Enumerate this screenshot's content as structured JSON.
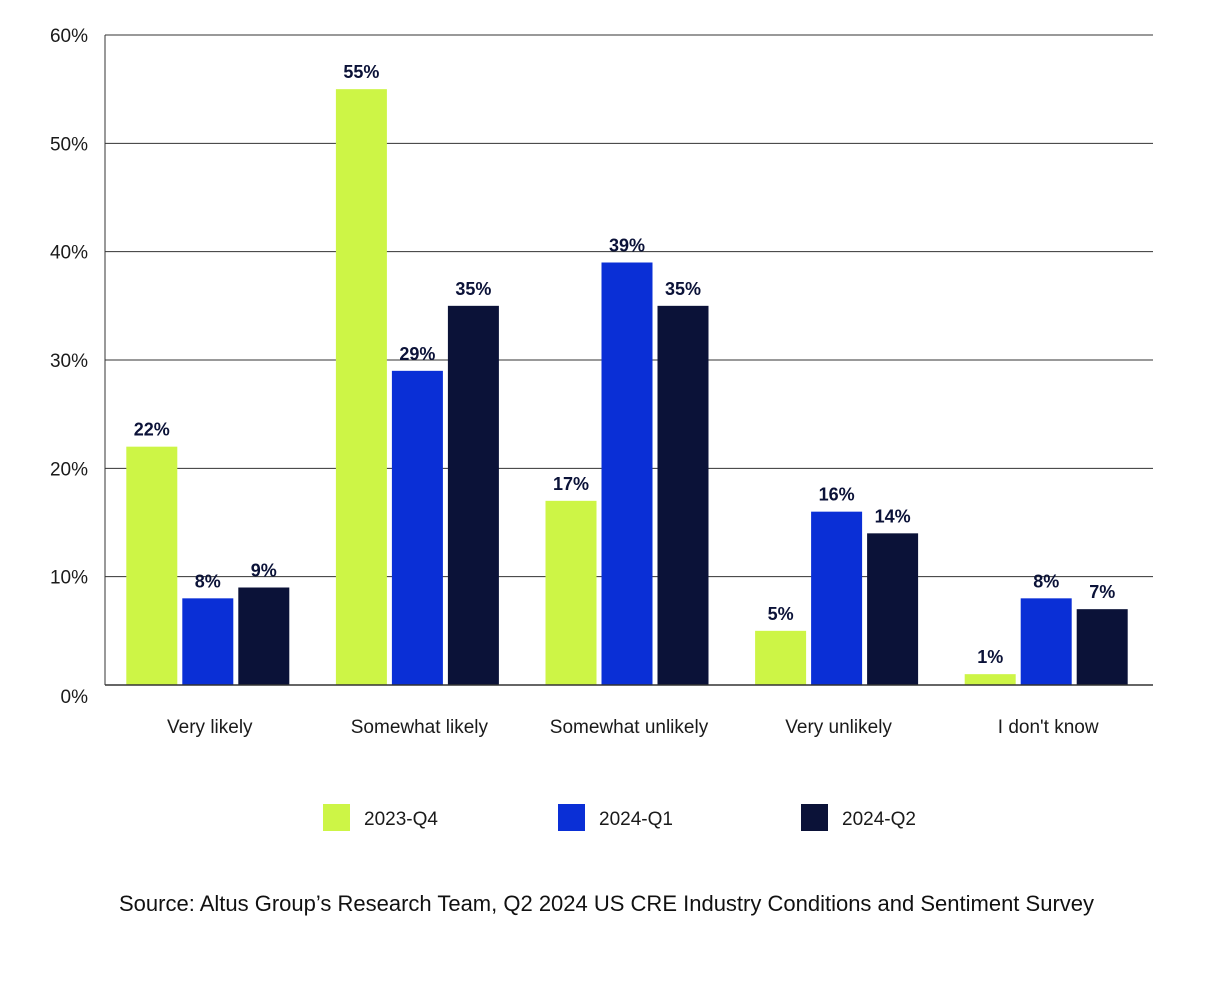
{
  "chart_data": {
    "type": "bar",
    "title": "",
    "xlabel": "",
    "ylabel": "",
    "ylim": [
      0,
      60
    ],
    "yticks": [
      0,
      10,
      20,
      30,
      40,
      50,
      60
    ],
    "ytick_labels": [
      "0%",
      "10%",
      "20%",
      "30%",
      "40%",
      "50%",
      "60%"
    ],
    "grid": true,
    "legend_position": "bottom",
    "categories": [
      "Very likely",
      "Somewhat likely",
      "Somewhat unlikely",
      "Very unlikely",
      "I don't know"
    ],
    "series": [
      {
        "name": "2023-Q4",
        "color": "#cdf546",
        "values": [
          22,
          55,
          17,
          5,
          1
        ],
        "labels": [
          "22%",
          "55%",
          "17%",
          "5%",
          "1%"
        ]
      },
      {
        "name": "2024-Q1",
        "color": "#0a2fd6",
        "values": [
          8,
          29,
          39,
          16,
          8
        ],
        "labels": [
          "8%",
          "29%",
          "39%",
          "16%",
          "8%"
        ]
      },
      {
        "name": "2024-Q2",
        "color": "#0b1238",
        "values": [
          9,
          35,
          35,
          14,
          7
        ],
        "labels": [
          "9%",
          "35%",
          "35%",
          "14%",
          "7%"
        ]
      }
    ]
  },
  "source": "Source: Altus Group’s Research Team, Q2 2024 US CRE Industry Conditions and Sentiment Survey"
}
